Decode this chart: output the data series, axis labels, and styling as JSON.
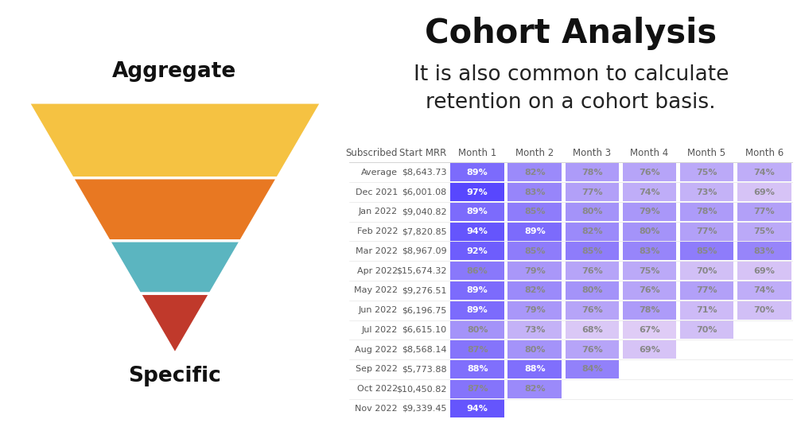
{
  "title": "Cohort Analysis",
  "subtitle": "It is also common to calculate\nretention on a cohort basis.",
  "funnel_colors": [
    "#F5C242",
    "#E87822",
    "#5BB5C0",
    "#C0392B"
  ],
  "funnel_label_top": "Aggregate",
  "funnel_label_bottom": "Specific",
  "table_headers": [
    "Subscribed",
    "Start MRR",
    "Month 1",
    "Month 2",
    "Month 3",
    "Month 4",
    "Month 5",
    "Month 6"
  ],
  "rows": [
    {
      "label": "Average",
      "mrr": "$8,643.73",
      "values": [
        89,
        82,
        78,
        76,
        75,
        74
      ]
    },
    {
      "label": "Dec 2021",
      "mrr": "$6,001.08",
      "values": [
        97,
        83,
        77,
        74,
        73,
        69
      ]
    },
    {
      "label": "Jan 2022",
      "mrr": "$9,040.82",
      "values": [
        89,
        85,
        80,
        79,
        78,
        77
      ]
    },
    {
      "label": "Feb 2022",
      "mrr": "$7,820.85",
      "values": [
        94,
        89,
        82,
        80,
        77,
        75
      ]
    },
    {
      "label": "Mar 2022",
      "mrr": "$8,967.09",
      "values": [
        92,
        85,
        85,
        83,
        85,
        83
      ]
    },
    {
      "label": "Apr 2022",
      "mrr": "$15,674.32",
      "values": [
        86,
        79,
        76,
        75,
        70,
        69
      ]
    },
    {
      "label": "May 2022",
      "mrr": "$9,276.51",
      "values": [
        89,
        82,
        80,
        76,
        77,
        74
      ]
    },
    {
      "label": "Jun 2022",
      "mrr": "$6,196.75",
      "values": [
        89,
        79,
        76,
        78,
        71,
        70
      ]
    },
    {
      "label": "Jul 2022",
      "mrr": "$6,615.10",
      "values": [
        80,
        73,
        68,
        67,
        70,
        null
      ]
    },
    {
      "label": "Aug 2022",
      "mrr": "$8,568.14",
      "values": [
        87,
        80,
        76,
        69,
        null,
        null
      ]
    },
    {
      "label": "Sep 2022",
      "mrr": "$5,773.88",
      "values": [
        88,
        88,
        84,
        null,
        null,
        null
      ]
    },
    {
      "label": "Oct 2022",
      "mrr": "$10,450.82",
      "values": [
        87,
        82,
        null,
        null,
        null,
        null
      ]
    },
    {
      "label": "Nov 2022",
      "mrr": "$9,339.45",
      "values": [
        94,
        null,
        null,
        null,
        null,
        null
      ]
    }
  ],
  "color_low": "#E8D5F5",
  "color_high": "#4A3AFF",
  "text_color_light": "#FFFFFF",
  "text_color_dark": "#888888",
  "bg_color": "#FFFFFF",
  "title_fontsize": 30,
  "subtitle_fontsize": 19,
  "table_fontsize": 8.0,
  "header_fontsize": 8.5
}
